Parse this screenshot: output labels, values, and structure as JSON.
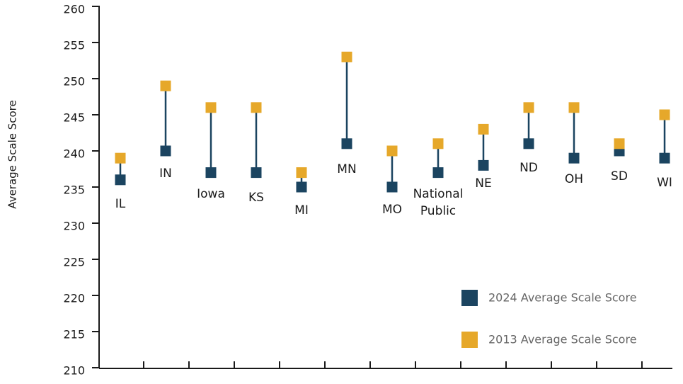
{
  "chart_data": {
    "type": "dumbbell",
    "y_label": "Average Scale Score",
    "categories": [
      "IL",
      "IN",
      "Iowa",
      "KS",
      "MI",
      "MN",
      "MO",
      "National Public",
      "NE",
      "ND",
      "OH",
      "SD",
      "WI"
    ],
    "series": [
      {
        "name": "2024 Average Scale Score",
        "color": "#1b4460",
        "values": [
          236,
          240,
          237,
          237,
          235,
          241,
          235,
          237,
          238,
          241,
          239,
          240,
          239
        ]
      },
      {
        "name": "2013 Average Scale Score",
        "color": "#e6a82a",
        "values": [
          239,
          249,
          246,
          246,
          237,
          253,
          240,
          241,
          243,
          246,
          246,
          241,
          245
        ]
      }
    ],
    "ylim": [
      210,
      260
    ],
    "yticks": [
      210,
      215,
      220,
      225,
      230,
      235,
      240,
      245,
      250,
      255,
      260
    ],
    "legend": "lower right"
  }
}
